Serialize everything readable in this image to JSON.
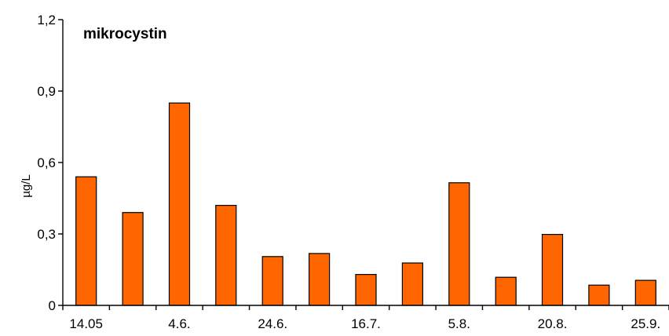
{
  "chart_data": {
    "type": "bar",
    "title": "mikrocystin",
    "xlabel": "",
    "ylabel": "µg/L",
    "categories": [
      "14.05",
      "",
      "4.6.",
      "",
      "24.6.",
      "",
      "16.7.",
      "",
      "5.8.",
      "",
      "20.8.",
      "",
      "25.9."
    ],
    "values": [
      0.54,
      0.39,
      0.85,
      0.42,
      0.205,
      0.218,
      0.13,
      0.178,
      0.515,
      0.118,
      0.298,
      0.085,
      0.105
    ],
    "ylim": [
      0,
      1.2
    ],
    "yticks": [
      0,
      0.3,
      0.6,
      0.9,
      1.2
    ],
    "ytick_labels": [
      "0",
      "0,3",
      "0,6",
      "0,9",
      "1,2"
    ],
    "grid": false,
    "legend": "none",
    "bar_color": "#FF6600",
    "edge_color": "#000000"
  }
}
